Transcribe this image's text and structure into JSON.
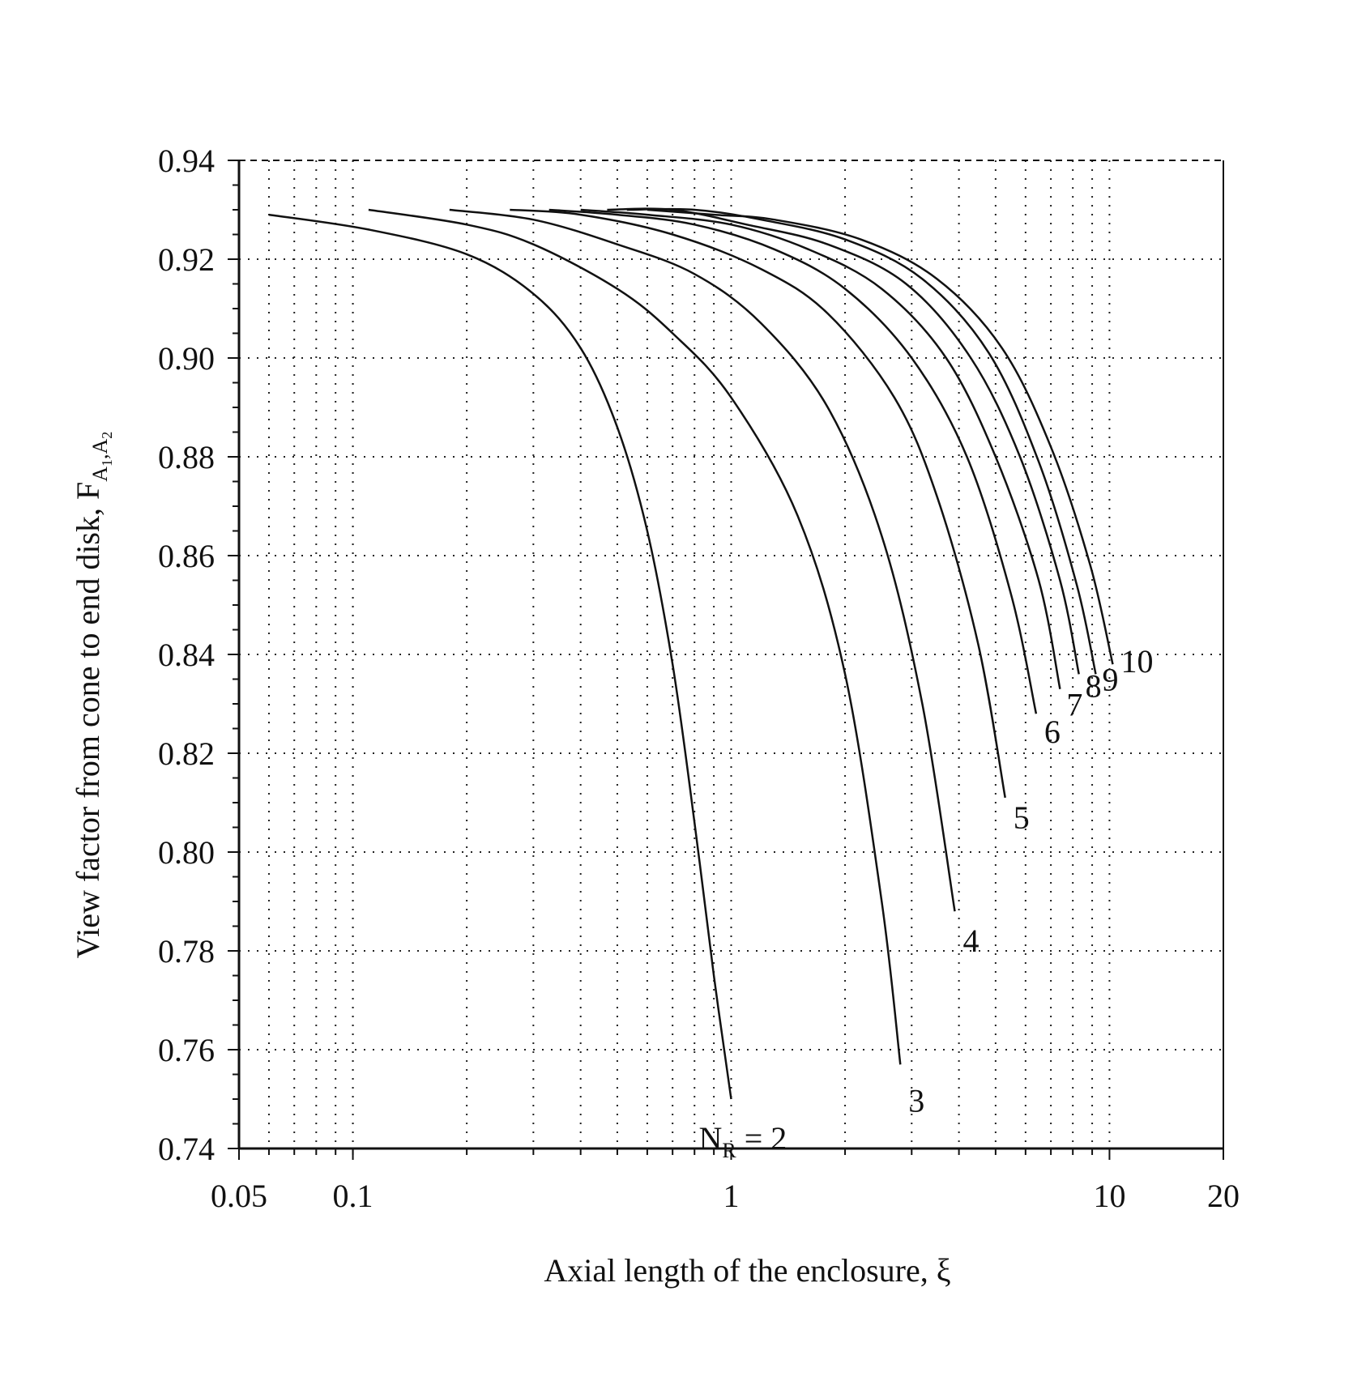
{
  "chart_data": {
    "type": "line",
    "xlabel": "Axial length of the enclosure, ξ",
    "ylabel": {
      "main": "View factor from cone to end disk, F",
      "sub1": "A",
      "sub1_index": "1",
      "comma": ",",
      "sub2": "A",
      "sub2_index": "2"
    },
    "x_scale": "log",
    "xlim": [
      0.05,
      20
    ],
    "ylim": [
      0.74,
      0.94
    ],
    "x_ticks": [
      {
        "value": 0.05,
        "label": "0.05"
      },
      {
        "value": 0.1,
        "label": "0.1"
      },
      {
        "value": 1,
        "label": "1"
      },
      {
        "value": 10,
        "label": "10"
      },
      {
        "value": 20,
        "label": "20"
      }
    ],
    "y_ticks": [
      {
        "value": 0.74,
        "label": "0.74"
      },
      {
        "value": 0.76,
        "label": "0.76"
      },
      {
        "value": 0.78,
        "label": "0.78"
      },
      {
        "value": 0.8,
        "label": "0.80"
      },
      {
        "value": 0.82,
        "label": "0.82"
      },
      {
        "value": 0.84,
        "label": "0.84"
      },
      {
        "value": 0.86,
        "label": "0.86"
      },
      {
        "value": 0.88,
        "label": "0.88"
      },
      {
        "value": 0.9,
        "label": "0.90"
      },
      {
        "value": 0.92,
        "label": "0.92"
      },
      {
        "value": 0.94,
        "label": "0.94"
      }
    ],
    "grid": "dotted",
    "series": [
      {
        "label_prefix": "N",
        "label_sub": "R",
        "label_suffix": " = 2",
        "points": [
          [
            0.06,
            0.929
          ],
          [
            0.11,
            0.926
          ],
          [
            0.2,
            0.921
          ],
          [
            0.3,
            0.913
          ],
          [
            0.4,
            0.902
          ],
          [
            0.5,
            0.886
          ],
          [
            0.6,
            0.865
          ],
          [
            0.7,
            0.838
          ],
          [
            0.8,
            0.806
          ],
          [
            0.9,
            0.775
          ],
          [
            1.0,
            0.75
          ]
        ]
      },
      {
        "label": "3",
        "points": [
          [
            0.11,
            0.93
          ],
          [
            0.2,
            0.927
          ],
          [
            0.3,
            0.923
          ],
          [
            0.5,
            0.914
          ],
          [
            0.7,
            0.905
          ],
          [
            1.0,
            0.892
          ],
          [
            1.5,
            0.868
          ],
          [
            2.0,
            0.836
          ],
          [
            2.5,
            0.79
          ],
          [
            2.8,
            0.757
          ]
        ]
      },
      {
        "label": "4",
        "points": [
          [
            0.18,
            0.93
          ],
          [
            0.3,
            0.928
          ],
          [
            0.5,
            0.923
          ],
          [
            0.8,
            0.917
          ],
          [
            1.2,
            0.907
          ],
          [
            1.8,
            0.89
          ],
          [
            2.5,
            0.864
          ],
          [
            3.2,
            0.83
          ],
          [
            3.9,
            0.788
          ]
        ]
      },
      {
        "label": "5",
        "points": [
          [
            0.26,
            0.93
          ],
          [
            0.4,
            0.929
          ],
          [
            0.7,
            0.925
          ],
          [
            1.2,
            0.918
          ],
          [
            1.8,
            0.909
          ],
          [
            2.7,
            0.892
          ],
          [
            3.5,
            0.872
          ],
          [
            4.5,
            0.842
          ],
          [
            5.3,
            0.811
          ]
        ]
      },
      {
        "label": "6",
        "points": [
          [
            0.33,
            0.93
          ],
          [
            0.5,
            0.929
          ],
          [
            0.8,
            0.927
          ],
          [
            1.3,
            0.922
          ],
          [
            2.0,
            0.914
          ],
          [
            3.0,
            0.9
          ],
          [
            4.2,
            0.88
          ],
          [
            5.5,
            0.852
          ],
          [
            6.4,
            0.828
          ]
        ]
      },
      {
        "label": "7",
        "points": [
          [
            0.4,
            0.93
          ],
          [
            0.6,
            0.929
          ],
          [
            1.0,
            0.927
          ],
          [
            1.6,
            0.922
          ],
          [
            2.5,
            0.914
          ],
          [
            3.7,
            0.9
          ],
          [
            5.0,
            0.88
          ],
          [
            6.5,
            0.855
          ],
          [
            7.4,
            0.833
          ]
        ]
      },
      {
        "label": "8",
        "points": [
          [
            0.47,
            0.93
          ],
          [
            0.7,
            0.93
          ],
          [
            1.1,
            0.927
          ],
          [
            1.8,
            0.923
          ],
          [
            2.9,
            0.915
          ],
          [
            4.3,
            0.9
          ],
          [
            5.8,
            0.88
          ],
          [
            7.4,
            0.855
          ],
          [
            8.3,
            0.836
          ]
        ]
      },
      {
        "label": "9",
        "points": [
          [
            0.53,
            0.93
          ],
          [
            0.8,
            0.93
          ],
          [
            1.2,
            0.928
          ],
          [
            2.0,
            0.924
          ],
          [
            3.2,
            0.916
          ],
          [
            4.8,
            0.901
          ],
          [
            6.5,
            0.879
          ],
          [
            8.2,
            0.854
          ],
          [
            9.2,
            0.836
          ]
        ]
      },
      {
        "label": "10",
        "points": [
          [
            0.6,
            0.93
          ],
          [
            0.9,
            0.929
          ],
          [
            1.3,
            0.928
          ],
          [
            2.2,
            0.924
          ],
          [
            3.5,
            0.916
          ],
          [
            5.2,
            0.902
          ],
          [
            7.0,
            0.882
          ],
          [
            8.9,
            0.858
          ],
          [
            10.2,
            0.838
          ]
        ]
      }
    ]
  }
}
